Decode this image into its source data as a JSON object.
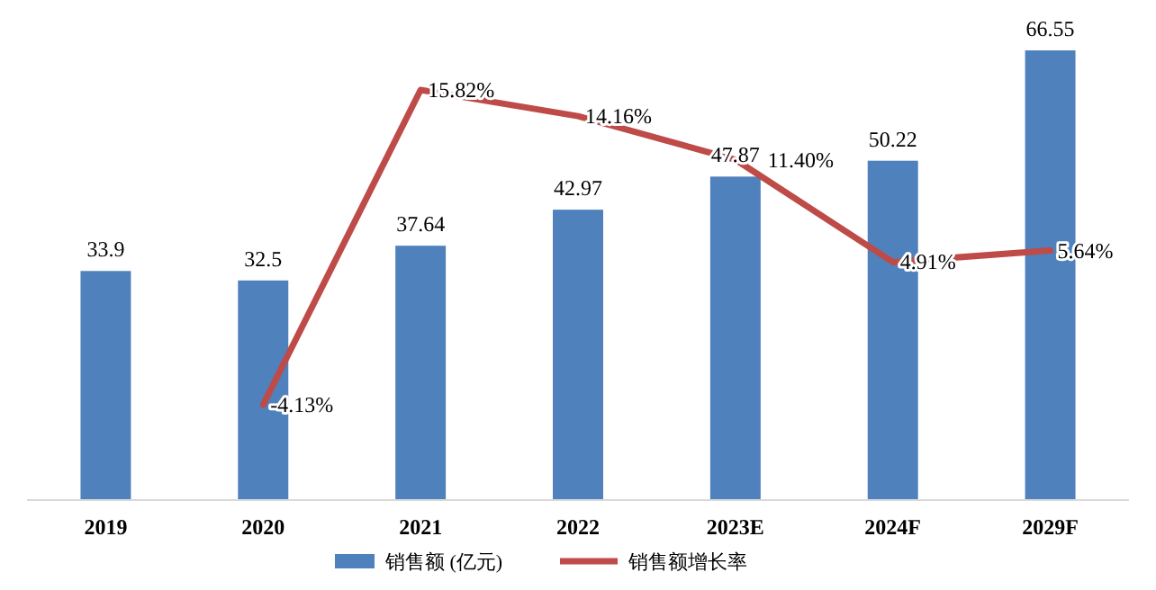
{
  "chart_data": {
    "type": "bar",
    "categories": [
      "2019",
      "2020",
      "2021",
      "2022",
      "2023E",
      "2024F",
      "2029F"
    ],
    "series": [
      {
        "name": "销售额 (亿元)",
        "color": "#4f81bd",
        "values": [
          33.9,
          32.5,
          37.64,
          42.97,
          47.87,
          50.22,
          66.55
        ]
      },
      {
        "name": "销售额增长率",
        "type": "line",
        "axis": "y2",
        "color": "#be4b48",
        "values": [
          null,
          -4.13,
          15.82,
          14.16,
          11.4,
          4.91,
          5.64
        ],
        "value_labels": [
          null,
          "-4.13%",
          "15.82%",
          "14.16%",
          "11.40%",
          "4.91%",
          "5.64%"
        ]
      }
    ],
    "data_labels": true,
    "tick_labels": "x",
    "legend": "bottom",
    "marker": "none",
    "line_style": "solid"
  }
}
